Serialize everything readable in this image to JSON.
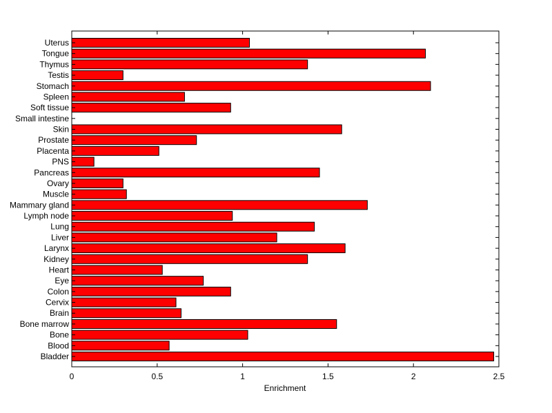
{
  "chart_data": {
    "type": "bar",
    "orientation": "horizontal",
    "title": "",
    "xlabel": "Enrichment",
    "ylabel": "",
    "xlim": [
      0,
      2.5
    ],
    "xticks": [
      0,
      0.5,
      1,
      1.5,
      2,
      2.5
    ],
    "xtick_labels": [
      "0",
      "0.5",
      "1",
      "1.5",
      "2",
      "2.5"
    ],
    "grid": false,
    "bar_color": "#ff0000",
    "edge_color": "#000000",
    "categories": [
      "Bladder",
      "Blood",
      "Bone",
      "Bone marrow",
      "Brain",
      "Cervix",
      "Colon",
      "Eye",
      "Heart",
      "Kidney",
      "Larynx",
      "Liver",
      "Lung",
      "Lymph node",
      "Mammary gland",
      "Muscle",
      "Ovary",
      "Pancreas",
      "PNS",
      "Placenta",
      "Prostate",
      "Skin",
      "Small intestine",
      "Soft tissue",
      "Spleen",
      "Stomach",
      "Testis",
      "Thymus",
      "Tongue",
      "Uterus"
    ],
    "values": [
      2.47,
      0.57,
      1.03,
      1.55,
      0.64,
      0.61,
      0.93,
      0.77,
      0.53,
      1.38,
      1.6,
      1.2,
      1.42,
      0.94,
      1.73,
      0.32,
      0.3,
      1.45,
      0.13,
      0.51,
      0.73,
      1.58,
      0.0,
      0.93,
      0.66,
      2.1,
      0.3,
      1.38,
      2.07,
      1.04
    ]
  }
}
